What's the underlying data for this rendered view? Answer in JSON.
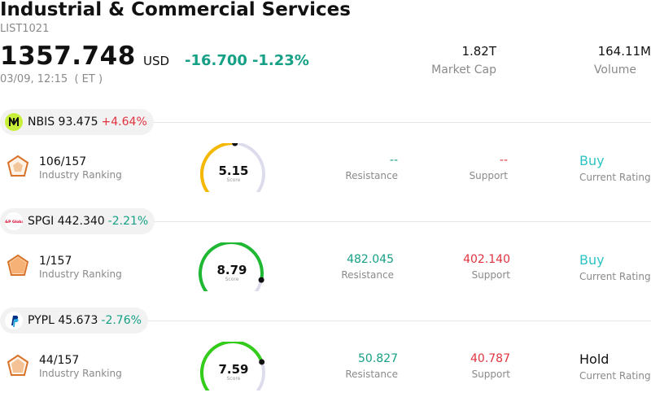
{
  "header": {
    "title": "Industrial & Commercial Services",
    "code": "LIST1021",
    "price": "1357.748",
    "currency": "USD",
    "change": "-16.700",
    "change_pct": "-1.23%",
    "time": "03/09, 12:15  ( ET )",
    "market_cap_value": "1.82T",
    "market_cap_label": "Market Cap",
    "volume_value": "164.11M",
    "volume_label": "Volume"
  },
  "stocks": [
    {
      "ticker": "NBIS",
      "price": "93.475",
      "change_pct": "+4.64%",
      "ranking": "106/157",
      "ranking_label": "Industry Ranking",
      "score": "5.15",
      "score_fraction": 0.515,
      "score_color": "#f5b800",
      "score_label": "Score",
      "resistance": "--",
      "resistance_label": "Resistance",
      "support": "--",
      "support_label": "Support",
      "rating": "Buy",
      "rating_label": "Current Rating"
    },
    {
      "ticker": "SPGI",
      "price": "442.340",
      "change_pct": "-2.21%",
      "ranking": "1/157",
      "ranking_label": "Industry Ranking",
      "score": "8.79",
      "score_fraction": 0.879,
      "score_color": "#1fb833",
      "score_label": "Score",
      "resistance": "482.045",
      "resistance_label": "Resistance",
      "support": "402.140",
      "support_label": "Support",
      "rating": "Buy",
      "rating_label": "Current Rating"
    },
    {
      "ticker": "PYPL",
      "price": "45.673",
      "change_pct": "-2.76%",
      "ranking": "44/157",
      "ranking_label": "Industry Ranking",
      "score": "7.59",
      "score_fraction": 0.759,
      "score_color": "#33cc1a",
      "score_label": "Score",
      "resistance": "50.827",
      "resistance_label": "Resistance",
      "support": "40.787",
      "support_label": "Support",
      "rating": "Hold",
      "rating_label": "Current Rating"
    }
  ],
  "icons": {
    "nbis_logo": "nbis-logo-icon",
    "spgi_logo": "spgi-logo-icon",
    "pypl_logo": "pypl-logo-icon",
    "ranking": "ranking-pentagon-icon"
  },
  "colors": {
    "up": "#e0333f",
    "down": "#16a085",
    "buy": "#2ec4c4"
  }
}
